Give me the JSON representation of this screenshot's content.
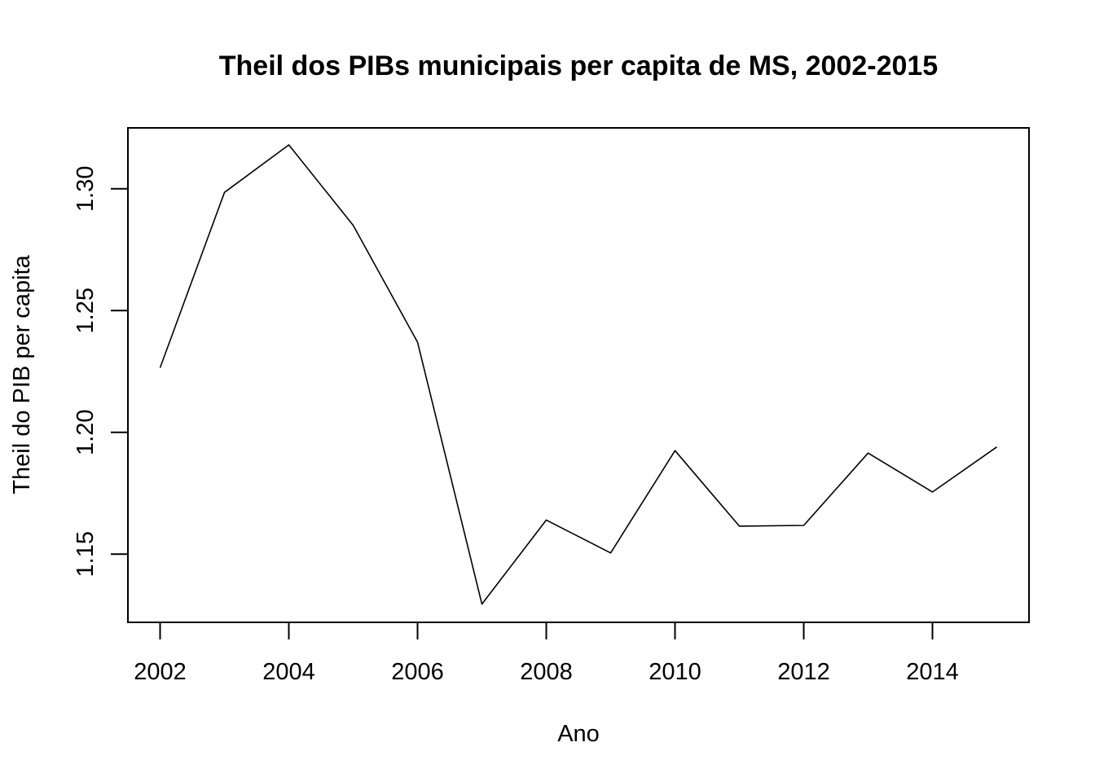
{
  "chart_data": {
    "type": "line",
    "title": "Theil dos PIBs municipais per capita de MS, 2002-2015",
    "xlabel": "Ano",
    "ylabel": "Theil do PIB per capita",
    "x": [
      2002,
      2003,
      2004,
      2005,
      2006,
      2007,
      2008,
      2009,
      2010,
      2011,
      2012,
      2013,
      2014,
      2015
    ],
    "series": [
      {
        "values": [
          1.2265,
          1.2985,
          1.318,
          1.285,
          1.237,
          1.1295,
          1.164,
          1.1505,
          1.1925,
          1.1615,
          1.1618,
          1.1915,
          1.1755,
          1.194
        ]
      }
    ],
    "xlim": [
      2001.5,
      2015.5
    ],
    "ylim": [
      1.122,
      1.325
    ],
    "x_ticks": [
      "2002",
      "2004",
      "2006",
      "2008",
      "2010",
      "2012",
      "2014"
    ],
    "y_ticks": [
      "1.15",
      "1.20",
      "1.25",
      "1.30"
    ],
    "grid": false,
    "line_color": "#000000"
  }
}
